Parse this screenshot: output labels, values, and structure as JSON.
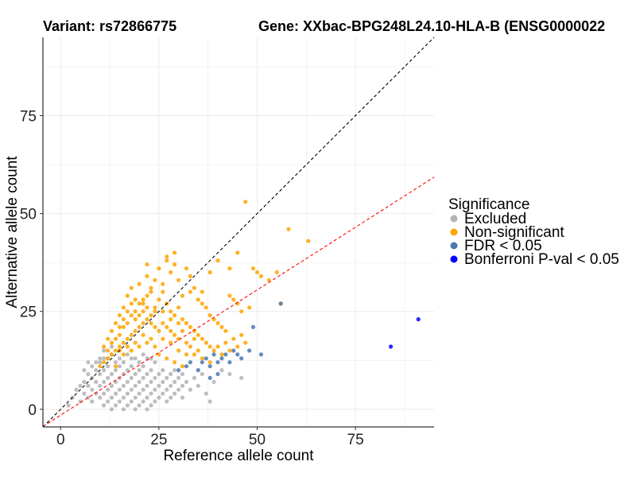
{
  "colors": {
    "Excluded": "#b3b3b3",
    "Non-significant": "#ffa500",
    "FDR < 0.05": "#4a78b0",
    "Bonferroni P-val < 0.05": "#0000ff",
    "diagonal": "#000000",
    "fit": "#ff0000",
    "grid": "#ebebeb"
  },
  "chart_data": {
    "type": "scatter",
    "title_left": "Variant: rs72866775",
    "title_right": "Gene: XXbac-BPG248L24.10-HLA-B (ENSG0000022",
    "xlabel": "Reference allele count",
    "ylabel": "Alternative allele count",
    "xlim": [
      -4.5,
      95
    ],
    "ylim": [
      -4.5,
      95
    ],
    "xticks": [
      0,
      25,
      50,
      75
    ],
    "yticks": [
      0,
      25,
      50,
      75
    ],
    "xtick_labels": [
      "0",
      "25",
      "50",
      "75"
    ],
    "ytick_labels": [
      "0",
      "25",
      "50",
      "75"
    ],
    "legend_title": "Significance",
    "legend_position": "right",
    "legend_labels": [
      "Excluded",
      "Non-significant",
      "FDR < 0.05",
      "Bonferroni P-val < 0.05"
    ],
    "reference_lines": [
      {
        "name": "diagonal",
        "style": "dashed",
        "intercept": 0,
        "slope": 1
      },
      {
        "name": "fit",
        "style": "dashed",
        "intercept": -1.5,
        "slope": 0.64
      }
    ],
    "series": [
      {
        "name": "Excluded",
        "points": [
          [
            2,
            1
          ],
          [
            3,
            3
          ],
          [
            4,
            5
          ],
          [
            5,
            2
          ],
          [
            5,
            6
          ],
          [
            6,
            4
          ],
          [
            6,
            7
          ],
          [
            7,
            3
          ],
          [
            7,
            6
          ],
          [
            7,
            9
          ],
          [
            8,
            2
          ],
          [
            8,
            5
          ],
          [
            8,
            8
          ],
          [
            9,
            4
          ],
          [
            9,
            7
          ],
          [
            9,
            10
          ],
          [
            10,
            3
          ],
          [
            10,
            6
          ],
          [
            10,
            9
          ],
          [
            10,
            12
          ],
          [
            11,
            1
          ],
          [
            11,
            4
          ],
          [
            11,
            7
          ],
          [
            11,
            10
          ],
          [
            12,
            2
          ],
          [
            12,
            5
          ],
          [
            12,
            8
          ],
          [
            12,
            11
          ],
          [
            13,
            0
          ],
          [
            13,
            3
          ],
          [
            13,
            6
          ],
          [
            13,
            9
          ],
          [
            14,
            1
          ],
          [
            14,
            4
          ],
          [
            14,
            7
          ],
          [
            14,
            10
          ],
          [
            15,
            2
          ],
          [
            15,
            5
          ],
          [
            15,
            8
          ],
          [
            15,
            11
          ],
          [
            16,
            0
          ],
          [
            16,
            3
          ],
          [
            16,
            6
          ],
          [
            16,
            9
          ],
          [
            17,
            1
          ],
          [
            17,
            4
          ],
          [
            17,
            7
          ],
          [
            17,
            10
          ],
          [
            18,
            2
          ],
          [
            18,
            5
          ],
          [
            18,
            8
          ],
          [
            18,
            11
          ],
          [
            19,
            0
          ],
          [
            19,
            3
          ],
          [
            19,
            6
          ],
          [
            19,
            9
          ],
          [
            20,
            1
          ],
          [
            20,
            4
          ],
          [
            20,
            7
          ],
          [
            20,
            10
          ],
          [
            21,
            2
          ],
          [
            21,
            5
          ],
          [
            21,
            8
          ],
          [
            21,
            11
          ],
          [
            22,
            0
          ],
          [
            22,
            3
          ],
          [
            22,
            6
          ],
          [
            22,
            9
          ],
          [
            23,
            1
          ],
          [
            23,
            4
          ],
          [
            23,
            7
          ],
          [
            23,
            10
          ],
          [
            24,
            2
          ],
          [
            24,
            5
          ],
          [
            24,
            8
          ],
          [
            25,
            3
          ],
          [
            25,
            6
          ],
          [
            25,
            9
          ],
          [
            26,
            4
          ],
          [
            26,
            7
          ],
          [
            26,
            10
          ],
          [
            27,
            2
          ],
          [
            27,
            5
          ],
          [
            27,
            8
          ],
          [
            28,
            3
          ],
          [
            28,
            6
          ],
          [
            28,
            9
          ],
          [
            29,
            4
          ],
          [
            29,
            7
          ],
          [
            29,
            10
          ],
          [
            30,
            5
          ],
          [
            30,
            8
          ],
          [
            31,
            3
          ],
          [
            31,
            6
          ],
          [
            31,
            9
          ],
          [
            32,
            7
          ],
          [
            33,
            5
          ],
          [
            34,
            8
          ],
          [
            35,
            6
          ],
          [
            36,
            9
          ],
          [
            37,
            4
          ],
          [
            38,
            2
          ],
          [
            39,
            7
          ],
          [
            41,
            10
          ],
          [
            43,
            9
          ],
          [
            46,
            8
          ],
          [
            12,
            13
          ],
          [
            14,
            12
          ],
          [
            16,
            12
          ],
          [
            18,
            13
          ],
          [
            20,
            12
          ],
          [
            22,
            13
          ],
          [
            24,
            12
          ],
          [
            13,
            14
          ],
          [
            15,
            13
          ],
          [
            17,
            14
          ],
          [
            19,
            13
          ],
          [
            21,
            14
          ],
          [
            23,
            13
          ],
          [
            10,
            13
          ],
          [
            11,
            13
          ],
          [
            9,
            12
          ],
          [
            8,
            11
          ],
          [
            7,
            12
          ],
          [
            6,
            10
          ],
          [
            11,
            15
          ],
          [
            13,
            16
          ]
        ]
      },
      {
        "name": "Non-significant",
        "points": [
          [
            10,
            11
          ],
          [
            11,
            12
          ],
          [
            12,
            13
          ],
          [
            13,
            14
          ],
          [
            14,
            15
          ],
          [
            15,
            16
          ],
          [
            16,
            17
          ],
          [
            17,
            18
          ],
          [
            18,
            19
          ],
          [
            19,
            20
          ],
          [
            20,
            21
          ],
          [
            21,
            22
          ],
          [
            22,
            23
          ],
          [
            23,
            24
          ],
          [
            24,
            25
          ],
          [
            12,
            15
          ],
          [
            13,
            17
          ],
          [
            14,
            18
          ],
          [
            15,
            19
          ],
          [
            16,
            21
          ],
          [
            17,
            22
          ],
          [
            18,
            24
          ],
          [
            19,
            25
          ],
          [
            20,
            27
          ],
          [
            21,
            28
          ],
          [
            22,
            29
          ],
          [
            23,
            31
          ],
          [
            24,
            26
          ],
          [
            25,
            28
          ],
          [
            26,
            30
          ],
          [
            27,
            27
          ],
          [
            28,
            25
          ],
          [
            29,
            24
          ],
          [
            30,
            26
          ],
          [
            31,
            23
          ],
          [
            32,
            22
          ],
          [
            33,
            21
          ],
          [
            34,
            20
          ],
          [
            35,
            19
          ],
          [
            36,
            18
          ],
          [
            37,
            17
          ],
          [
            38,
            16
          ],
          [
            39,
            15
          ],
          [
            40,
            16
          ],
          [
            41,
            14
          ],
          [
            42,
            17
          ],
          [
            43,
            15
          ],
          [
            44,
            18
          ],
          [
            45,
            16
          ],
          [
            46,
            19
          ],
          [
            47,
            17
          ],
          [
            15,
            24
          ],
          [
            16,
            26
          ],
          [
            17,
            29
          ],
          [
            18,
            31
          ],
          [
            19,
            28
          ],
          [
            20,
            32
          ],
          [
            21,
            27
          ],
          [
            22,
            34
          ],
          [
            23,
            30
          ],
          [
            24,
            33
          ],
          [
            25,
            36
          ],
          [
            26,
            32
          ],
          [
            27,
            39
          ],
          [
            28,
            35
          ],
          [
            29,
            37
          ],
          [
            30,
            33
          ],
          [
            31,
            29
          ],
          [
            32,
            36
          ],
          [
            33,
            30
          ],
          [
            34,
            31
          ],
          [
            35,
            28
          ],
          [
            36,
            27
          ],
          [
            37,
            26
          ],
          [
            38,
            24
          ],
          [
            39,
            23
          ],
          [
            40,
            22
          ],
          [
            41,
            21
          ],
          [
            42,
            20
          ],
          [
            43,
            29
          ],
          [
            44,
            28
          ],
          [
            45,
            27
          ],
          [
            46,
            25
          ],
          [
            48,
            26
          ],
          [
            49,
            36
          ],
          [
            50,
            35
          ],
          [
            51,
            34
          ],
          [
            53,
            33
          ],
          [
            55,
            35
          ],
          [
            56,
            27
          ],
          [
            58,
            46
          ],
          [
            63,
            43
          ],
          [
            47,
            53
          ],
          [
            43,
            36
          ],
          [
            45,
            40
          ],
          [
            36,
            30
          ],
          [
            38,
            35
          ],
          [
            40,
            38
          ],
          [
            22,
            37
          ],
          [
            27,
            38
          ],
          [
            29,
            40
          ],
          [
            33,
            34
          ],
          [
            11,
            16
          ],
          [
            12,
            18
          ],
          [
            13,
            20
          ],
          [
            14,
            22
          ],
          [
            15,
            21
          ],
          [
            16,
            23
          ],
          [
            17,
            25
          ],
          [
            18,
            27
          ],
          [
            19,
            23
          ],
          [
            20,
            24
          ],
          [
            21,
            25
          ],
          [
            22,
            26
          ],
          [
            23,
            22
          ],
          [
            24,
            21
          ],
          [
            25,
            20
          ],
          [
            26,
            22
          ],
          [
            27,
            21
          ],
          [
            28,
            20
          ],
          [
            29,
            19
          ],
          [
            30,
            18
          ],
          [
            31,
            20
          ],
          [
            32,
            17
          ],
          [
            33,
            16
          ],
          [
            34,
            18
          ],
          [
            35,
            15
          ],
          [
            14,
            11
          ],
          [
            16,
            14
          ],
          [
            18,
            15
          ],
          [
            20,
            16
          ],
          [
            22,
            17
          ],
          [
            24,
            16
          ],
          [
            26,
            18
          ],
          [
            28,
            17
          ],
          [
            30,
            15
          ],
          [
            32,
            14
          ],
          [
            34,
            14
          ],
          [
            36,
            13
          ],
          [
            38,
            12
          ],
          [
            25,
            14
          ],
          [
            27,
            13
          ],
          [
            29,
            12
          ],
          [
            31,
            11
          ],
          [
            23,
            18
          ],
          [
            19,
            17
          ],
          [
            17,
            16
          ],
          [
            15,
            15
          ],
          [
            21,
            19
          ],
          [
            26,
            25
          ],
          [
            28,
            23
          ],
          [
            30,
            22
          ]
        ]
      },
      {
        "name": "FDR < 0.05",
        "points": [
          [
            30,
            10
          ],
          [
            32,
            11
          ],
          [
            33,
            12
          ],
          [
            35,
            10
          ],
          [
            36,
            12
          ],
          [
            37,
            13
          ],
          [
            38,
            11
          ],
          [
            39,
            14
          ],
          [
            40,
            12
          ],
          [
            41,
            13
          ],
          [
            42,
            14
          ],
          [
            43,
            12
          ],
          [
            44,
            15
          ],
          [
            45,
            14
          ],
          [
            46,
            13
          ],
          [
            48,
            15
          ],
          [
            51,
            14
          ],
          [
            49,
            21
          ],
          [
            56,
            27
          ],
          [
            38,
            8
          ],
          [
            40,
            9
          ]
        ]
      },
      {
        "name": "Bonferroni P-val < 0.05",
        "points": [
          [
            84,
            16
          ],
          [
            91,
            23
          ]
        ]
      }
    ]
  }
}
